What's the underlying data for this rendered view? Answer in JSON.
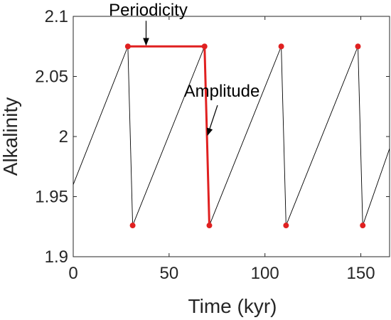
{
  "chart_data": {
    "type": "line",
    "title": "",
    "xlabel": "Time (kyr)",
    "ylabel": "Alkalinity",
    "xlim": [
      0,
      165
    ],
    "ylim": [
      1.9,
      2.1
    ],
    "xticks": [
      0,
      50,
      100,
      150
    ],
    "xtick_labels": [
      "0",
      "50",
      "100",
      "150"
    ],
    "yticks": [
      1.9,
      1.95,
      2.0,
      2.05,
      2.1
    ],
    "ytick_labels": [
      "1.9",
      "1.95",
      "2",
      "2.05",
      "2.1"
    ],
    "grid": false,
    "series": [
      {
        "name": "",
        "color": "#000000",
        "x": [
          0,
          28.5,
          31,
          68.5,
          71,
          108.5,
          111,
          148.5,
          151,
          165
        ],
        "y": [
          1.96,
          2.075,
          1.926,
          2.075,
          1.926,
          2.075,
          1.926,
          2.075,
          1.926,
          1.99
        ]
      }
    ],
    "markers": {
      "color": "#e02020",
      "x": [
        28.5,
        31,
        68.5,
        71,
        108.5,
        111,
        148.5,
        151
      ],
      "y": [
        2.075,
        1.926,
        2.075,
        1.926,
        2.075,
        1.926,
        2.075,
        1.926
      ]
    },
    "highlight": {
      "color": "#e02020",
      "x": [
        28.5,
        68.5,
        71
      ],
      "y": [
        2.075,
        2.075,
        1.926
      ]
    },
    "annotations": [
      {
        "text": "Periodicity",
        "x": 38,
        "y": 2.075
      },
      {
        "text": "Amplitude",
        "x": 69.7,
        "y": 2.0
      }
    ]
  }
}
